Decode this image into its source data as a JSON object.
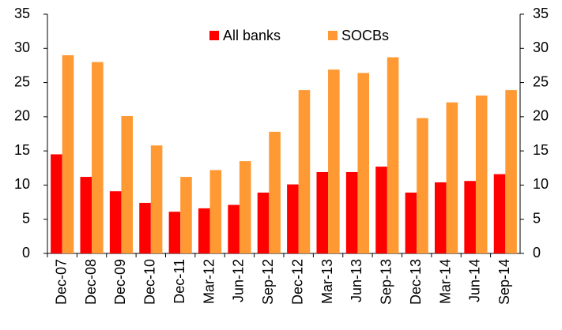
{
  "chart_data": {
    "type": "bar",
    "categories": [
      "Dec-07",
      "Dec-08",
      "Dec-09",
      "Dec-10",
      "Dec-11",
      "Mar-12",
      "Jun-12",
      "Sep-12",
      "Dec-12",
      "Mar-13",
      "Jun-13",
      "Sep-13",
      "Dec-13",
      "Mar-14",
      "Jun-14",
      "Sep-14"
    ],
    "series": [
      {
        "name": "All banks",
        "color": "#ff0000",
        "values": [
          14.5,
          11.2,
          9.1,
          7.4,
          6.1,
          6.6,
          7.1,
          8.9,
          10.1,
          11.9,
          11.9,
          12.7,
          8.9,
          10.4,
          10.6,
          11.6
        ]
      },
      {
        "name": "SOCBs",
        "color": "#ff9933",
        "values": [
          29,
          28,
          20.1,
          15.8,
          11.2,
          12.2,
          13.5,
          17.8,
          23.9,
          26.9,
          26.4,
          28.7,
          19.8,
          22.1,
          23.1,
          23.9
        ]
      }
    ],
    "ylim": [
      0,
      35
    ],
    "yticks": [
      0,
      5,
      10,
      15,
      20,
      25,
      30,
      35
    ],
    "y2lim": [
      0,
      35
    ],
    "y2ticks": [
      0,
      5,
      10,
      15,
      20,
      25,
      30,
      35
    ],
    "legend": "top"
  }
}
